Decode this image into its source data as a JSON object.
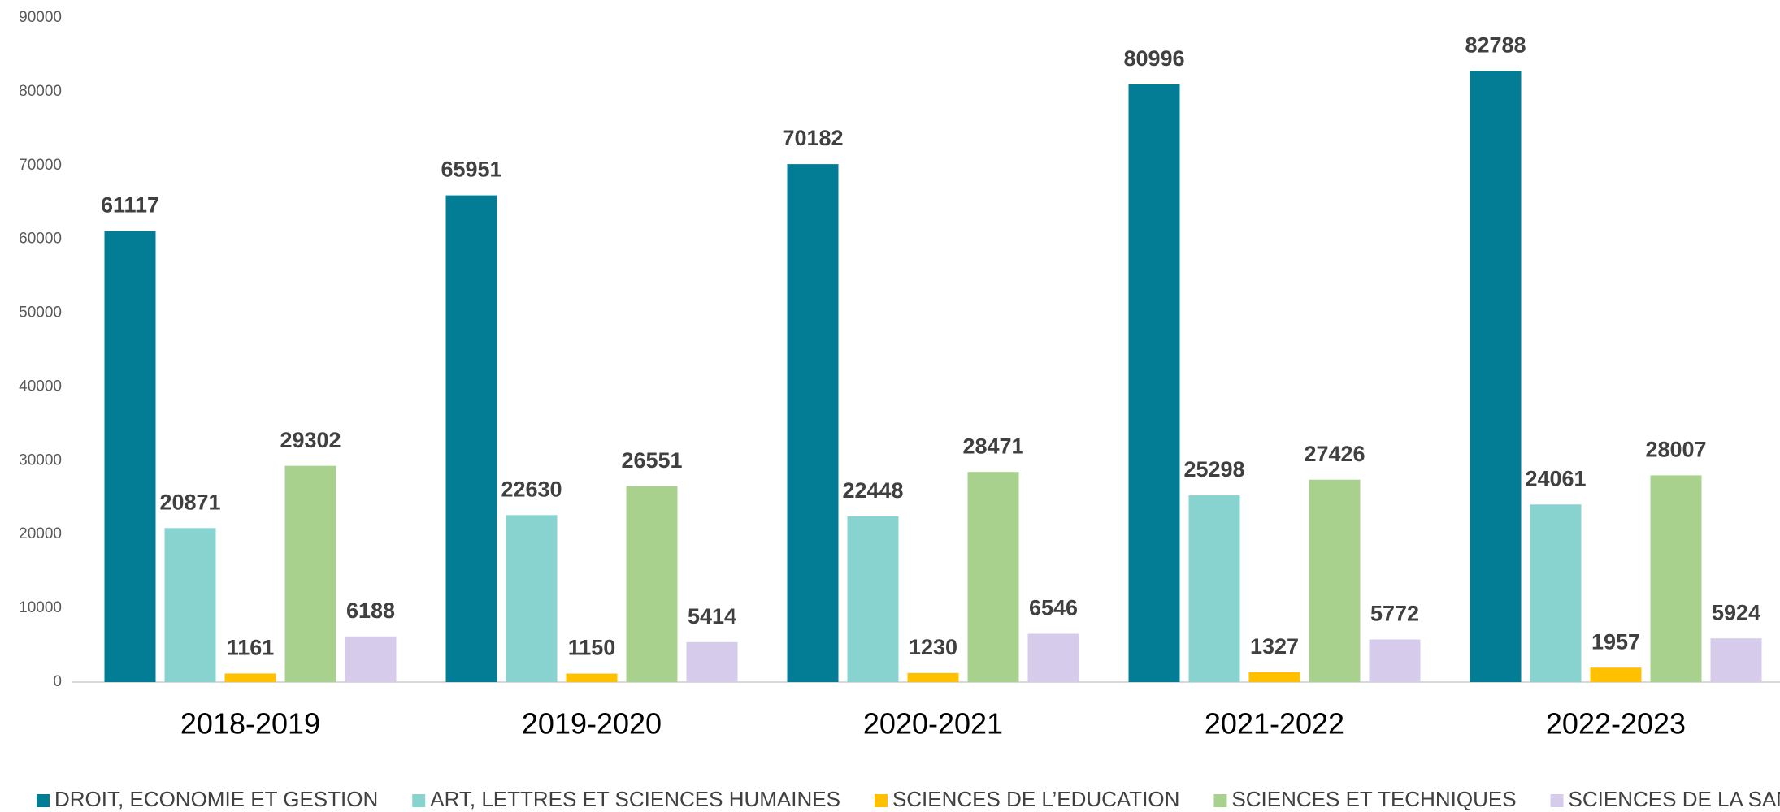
{
  "chart_data": {
    "type": "bar",
    "categories": [
      "2018-2019",
      "2019-2020",
      "2020-2021",
      "2021-2022",
      "2022-2023"
    ],
    "series": [
      {
        "name": "DROIT, ECONOMIE ET GESTION",
        "color": "#037d95",
        "values": [
          61117,
          65951,
          70182,
          80996,
          82788
        ]
      },
      {
        "name": "ART, LETTRES ET SCIENCES HUMAINES",
        "color": "#88d3cf",
        "values": [
          20871,
          22630,
          22448,
          25298,
          24061
        ]
      },
      {
        "name": "SCIENCES DE L’EDUCATION",
        "color": "#ffc000",
        "values": [
          1161,
          1150,
          1230,
          1327,
          1957
        ]
      },
      {
        "name": "SCIENCES ET TECHNIQUES",
        "color": "#a9d18e",
        "values": [
          29302,
          26551,
          28471,
          27426,
          28007
        ]
      },
      {
        "name": "SCIENCES DE LA SANTE",
        "color": "#d6cbeb",
        "values": [
          6188,
          5414,
          6546,
          5772,
          5924
        ]
      }
    ],
    "ylim": [
      0,
      90000
    ],
    "yticks": [
      0,
      10000,
      20000,
      30000,
      40000,
      50000,
      60000,
      70000,
      80000,
      90000
    ],
    "grid": false,
    "legend": "bottom"
  }
}
